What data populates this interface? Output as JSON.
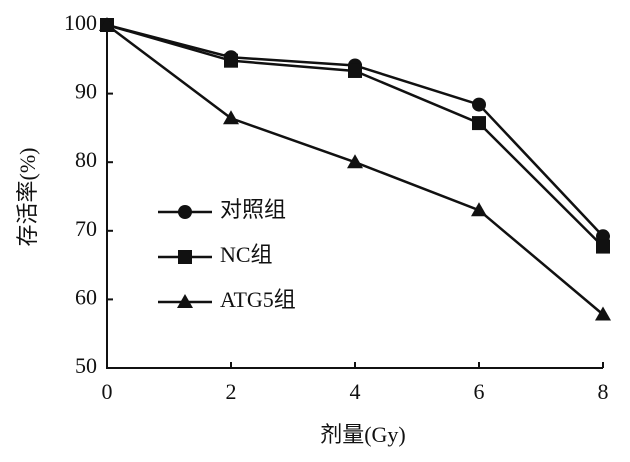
{
  "chart_data": {
    "type": "line",
    "x_label": "剂量(Gy)",
    "y_label": "存活率(%)",
    "x": [
      0,
      2,
      4,
      6,
      8
    ],
    "xlim": [
      0,
      8
    ],
    "xticks": [
      0,
      2,
      4,
      6,
      8
    ],
    "ylim": [
      50,
      100
    ],
    "yticks": [
      50,
      60,
      70,
      80,
      90,
      100
    ],
    "legend": "center left",
    "series": [
      {
        "name": "对照组",
        "color": "#111111",
        "marker": "circle",
        "values": [
          100,
          95.3,
          94.1,
          88.4,
          69.2
        ]
      },
      {
        "name": "NC组",
        "color": "#111111",
        "marker": "square",
        "values": [
          100,
          94.8,
          93.3,
          85.7,
          67.7
        ]
      },
      {
        "name": "ATG5组",
        "color": "#111111",
        "marker": "triangle",
        "values": [
          100,
          86.4,
          80,
          73,
          57.8
        ]
      }
    ]
  }
}
